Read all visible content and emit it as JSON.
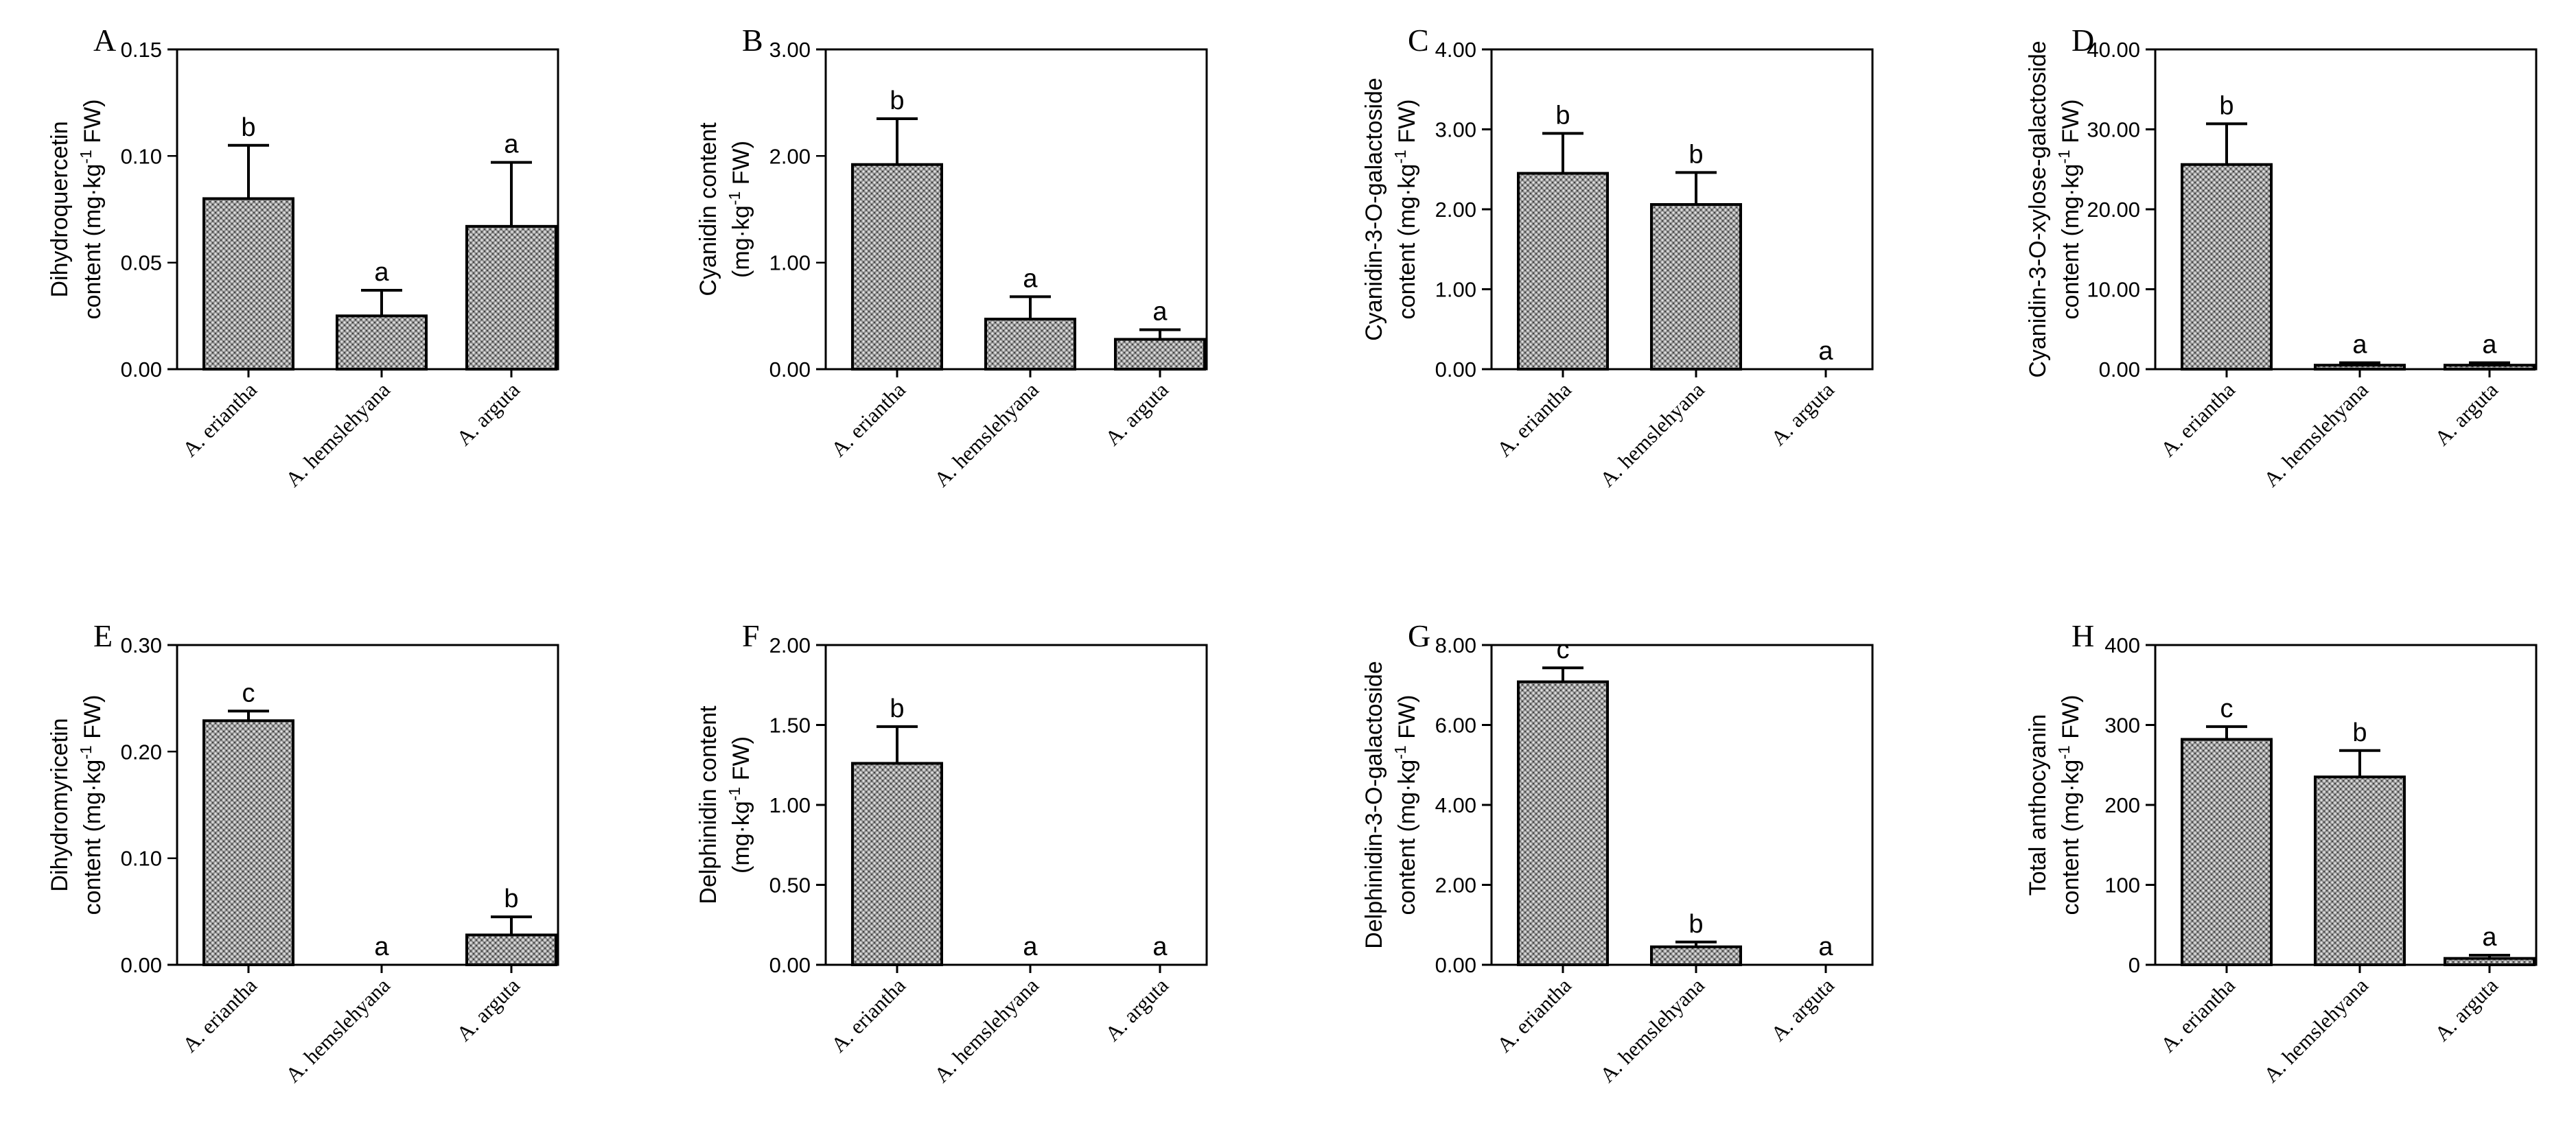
{
  "chart_data": [
    {
      "panel": "A",
      "type": "bar",
      "ylabel": [
        "Dihydroquercetin",
        "content (mg·kg",
        "-1",
        " FW)"
      ],
      "ylim": [
        0,
        0.15
      ],
      "yticks": [
        "0.00",
        "0.05",
        "0.10",
        "0.15"
      ],
      "categories": [
        "A. eriantha",
        "A. hemslehyana",
        "A. arguta"
      ],
      "values": [
        0.08,
        0.025,
        0.067
      ],
      "errors": [
        0.025,
        0.012,
        0.03
      ],
      "letters": [
        "b",
        "a",
        "a"
      ]
    },
    {
      "panel": "B",
      "type": "bar",
      "ylabel": [
        "Cyanidin content",
        "(mg·kg",
        "-1",
        " FW)"
      ],
      "ylim": [
        0,
        3.0
      ],
      "yticks": [
        "0.00",
        "1.00",
        "2.00",
        "3.00"
      ],
      "categories": [
        "A. eriantha",
        "A. hemslehyana",
        "A. arguta"
      ],
      "values": [
        1.92,
        0.47,
        0.28
      ],
      "errors": [
        0.43,
        0.21,
        0.09
      ],
      "letters": [
        "b",
        "a",
        "a"
      ]
    },
    {
      "panel": "C",
      "type": "bar",
      "ylabel": [
        "Cyanidin-3-O-galactoside",
        "content (mg·kg",
        "-1",
        " FW)"
      ],
      "ylim": [
        0,
        4.0
      ],
      "yticks": [
        "0.00",
        "1.00",
        "2.00",
        "3.00",
        "4.00"
      ],
      "categories": [
        "A. eriantha",
        "A. hemslehyana",
        "A. arguta"
      ],
      "values": [
        2.45,
        2.06,
        0.0
      ],
      "errors": [
        0.5,
        0.4,
        0.0
      ],
      "letters": [
        "b",
        "b",
        "a"
      ]
    },
    {
      "panel": "D",
      "type": "bar",
      "ylabel": [
        "Cyanidin-3-O-xylose-galactoside",
        "content (mg·kg",
        "-1",
        " FW)"
      ],
      "ylim": [
        0,
        40.0
      ],
      "yticks": [
        "0.00",
        "10.00",
        "20.00",
        "30.00",
        "40.00"
      ],
      "categories": [
        "A. eriantha",
        "A. hemslehyana",
        "A. arguta"
      ],
      "values": [
        25.6,
        0.5,
        0.5
      ],
      "errors": [
        5.1,
        0.3,
        0.3
      ],
      "letters": [
        "b",
        "a",
        "a"
      ]
    },
    {
      "panel": "E",
      "type": "bar",
      "ylabel": [
        "Dihydromyricetin",
        "content (mg·kg",
        "-1",
        " FW)"
      ],
      "ylim": [
        0,
        0.3
      ],
      "yticks": [
        "0.00",
        "0.10",
        "0.20",
        "0.30"
      ],
      "categories": [
        "A. eriantha",
        "A. hemslehyana",
        "A. arguta"
      ],
      "values": [
        0.229,
        0.0,
        0.028
      ],
      "errors": [
        0.009,
        0.0,
        0.017
      ],
      "letters": [
        "c",
        "a",
        "b"
      ]
    },
    {
      "panel": "F",
      "type": "bar",
      "ylabel": [
        "Delphinidin content",
        "(mg·kg",
        "-1",
        " FW)"
      ],
      "ylim": [
        0,
        2.0
      ],
      "yticks": [
        "0.00",
        "0.50",
        "1.00",
        "1.50",
        "2.00"
      ],
      "categories": [
        "A. eriantha",
        "A. hemslehyana",
        "A. arguta"
      ],
      "values": [
        1.26,
        0.0,
        0.0
      ],
      "errors": [
        0.23,
        0.0,
        0.0
      ],
      "letters": [
        "b",
        "a",
        "a"
      ]
    },
    {
      "panel": "G",
      "type": "bar",
      "ylabel": [
        "Delphinidin-3-O-galactoside",
        "content (mg·kg",
        "-1",
        " FW)"
      ],
      "ylim": [
        0,
        8.0
      ],
      "yticks": [
        "0.00",
        "2.00",
        "4.00",
        "6.00",
        "8.00"
      ],
      "categories": [
        "A. eriantha",
        "A. hemslehyana",
        "A. arguta"
      ],
      "values": [
        7.08,
        0.45,
        0.0
      ],
      "errors": [
        0.35,
        0.12,
        0.0
      ],
      "letters": [
        "c",
        "b",
        "a"
      ]
    },
    {
      "panel": "H",
      "type": "bar",
      "ylabel": [
        "Total anthocyanin",
        "content (mg·kg",
        "-1",
        " FW)"
      ],
      "ylim": [
        0,
        400
      ],
      "yticks": [
        "0",
        "100",
        "200",
        "300",
        "400"
      ],
      "categories": [
        "A. eriantha",
        "A. hemslehyana",
        "A. arguta"
      ],
      "values": [
        282,
        235,
        8
      ],
      "errors": [
        16,
        33,
        4
      ],
      "letters": [
        "c",
        "b",
        "a"
      ]
    }
  ]
}
